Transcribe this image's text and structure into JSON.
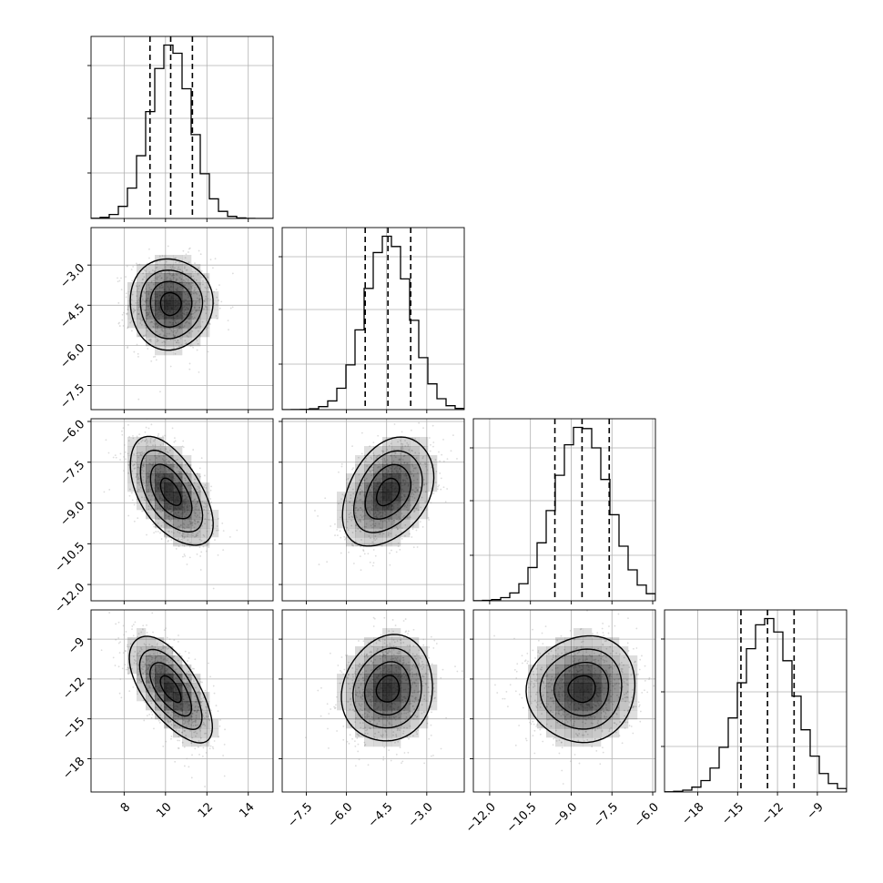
{
  "chart_data": {
    "type": "corner",
    "grid": true,
    "quantile_lines": true,
    "colors": {
      "line": "#000000",
      "grid": "#b0b0b0",
      "density": "#000000",
      "points": "#9a9a9a"
    },
    "parameters": [
      {
        "range": [
          6.4,
          15.2
        ],
        "ticks": [
          8,
          10,
          12,
          14
        ],
        "tick_labels": [
          "8",
          "10",
          "12",
          "14"
        ],
        "mean": 10.25,
        "sd": 1.0,
        "quantiles": [
          9.25,
          10.25,
          11.3
        ]
      },
      {
        "range": [
          -8.4,
          -1.6
        ],
        "ticks": [
          -7.5,
          -6.0,
          -4.5,
          -3.0
        ],
        "tick_labels": [
          "−7.5",
          "−6.0",
          "−4.5",
          "−3.0"
        ],
        "mean": -4.45,
        "sd": 0.85,
        "quantiles": [
          -5.3,
          -4.45,
          -3.6
        ]
      },
      {
        "range": [
          -12.6,
          -5.9
        ],
        "ticks": [
          -12.0,
          -10.5,
          -9.0,
          -7.5,
          -6.0
        ],
        "tick_labels": [
          "−12.0",
          "−10.5",
          "−9.0",
          "−7.5",
          "−6.0"
        ],
        "mean": -8.6,
        "sd": 1.0,
        "quantiles": [
          -9.6,
          -8.6,
          -7.6
        ]
      },
      {
        "range": [
          -20.5,
          -6.8
        ],
        "ticks": [
          -18,
          -15,
          -12,
          -9
        ],
        "tick_labels": [
          "−18",
          "−15",
          "−12",
          "−9"
        ],
        "mean": -12.75,
        "sd": 2.0,
        "quantiles": [
          -14.75,
          -12.75,
          -10.75
        ]
      }
    ],
    "correlations": [
      {
        "x": 0,
        "y": 1,
        "rho": 0.0
      },
      {
        "x": 0,
        "y": 2,
        "rho": -0.55
      },
      {
        "x": 1,
        "y": 2,
        "rho": 0.35
      },
      {
        "x": 0,
        "y": 3,
        "rho": -0.65
      },
      {
        "x": 1,
        "y": 3,
        "rho": 0.1
      },
      {
        "x": 2,
        "y": 3,
        "rho": 0.05
      }
    ]
  }
}
